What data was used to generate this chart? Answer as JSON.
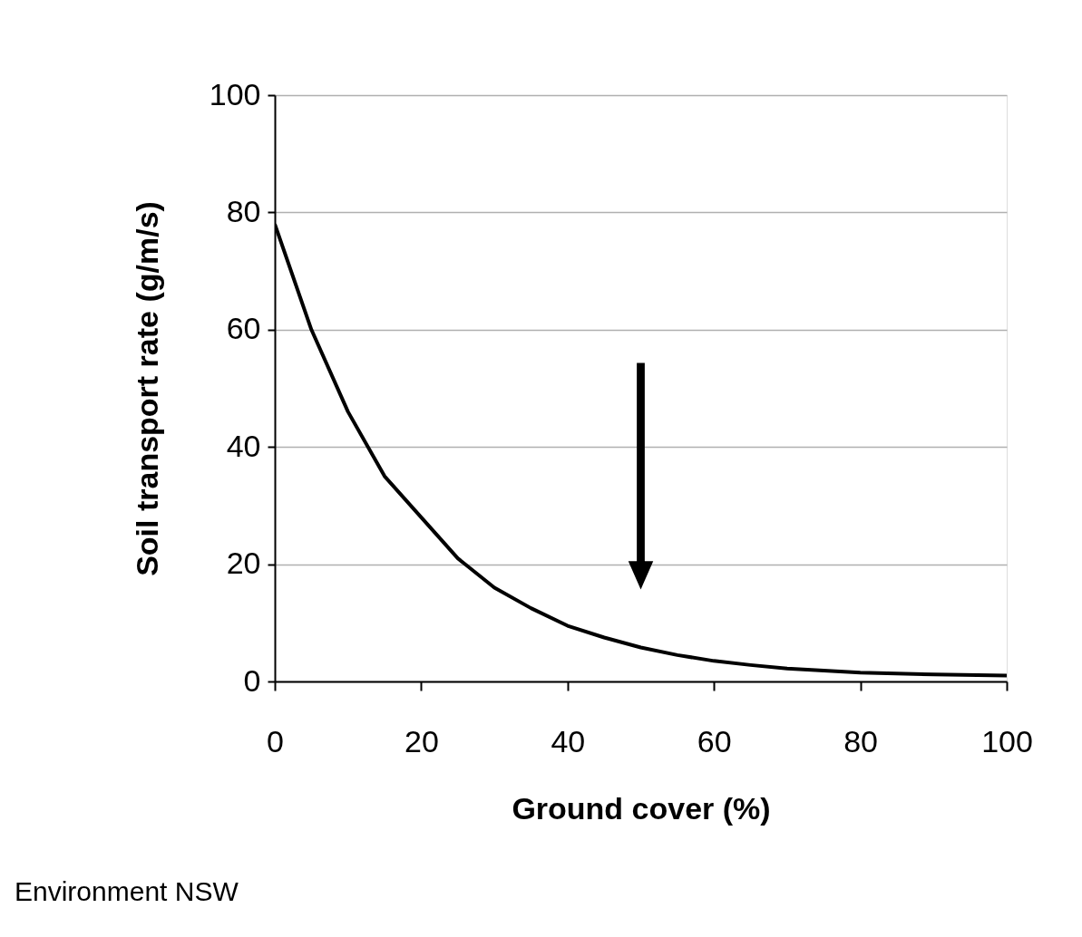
{
  "chart_data": {
    "type": "line",
    "xlabel": "Ground cover (%)",
    "ylabel": "Soil transport rate (g/m/s)",
    "x": [
      0,
      5,
      10,
      15,
      20,
      25,
      30,
      35,
      40,
      45,
      50,
      55,
      60,
      65,
      70,
      80,
      90,
      100
    ],
    "series": [
      {
        "color": "#000000",
        "values": [
          78,
          60,
          46,
          35,
          28,
          21,
          16,
          12.5,
          9.5,
          7.5,
          5.8,
          4.5,
          3.5,
          2.8,
          2.2,
          1.5,
          1.2,
          1
        ]
      }
    ],
    "xlim": [
      0,
      100
    ],
    "ylim": [
      0,
      100
    ],
    "xticks": [
      0,
      20,
      40,
      60,
      80,
      100
    ],
    "yticks": [
      0,
      20,
      40,
      60,
      80,
      100
    ],
    "grid": "y",
    "annotations": [
      "Environment NSW"
    ]
  }
}
